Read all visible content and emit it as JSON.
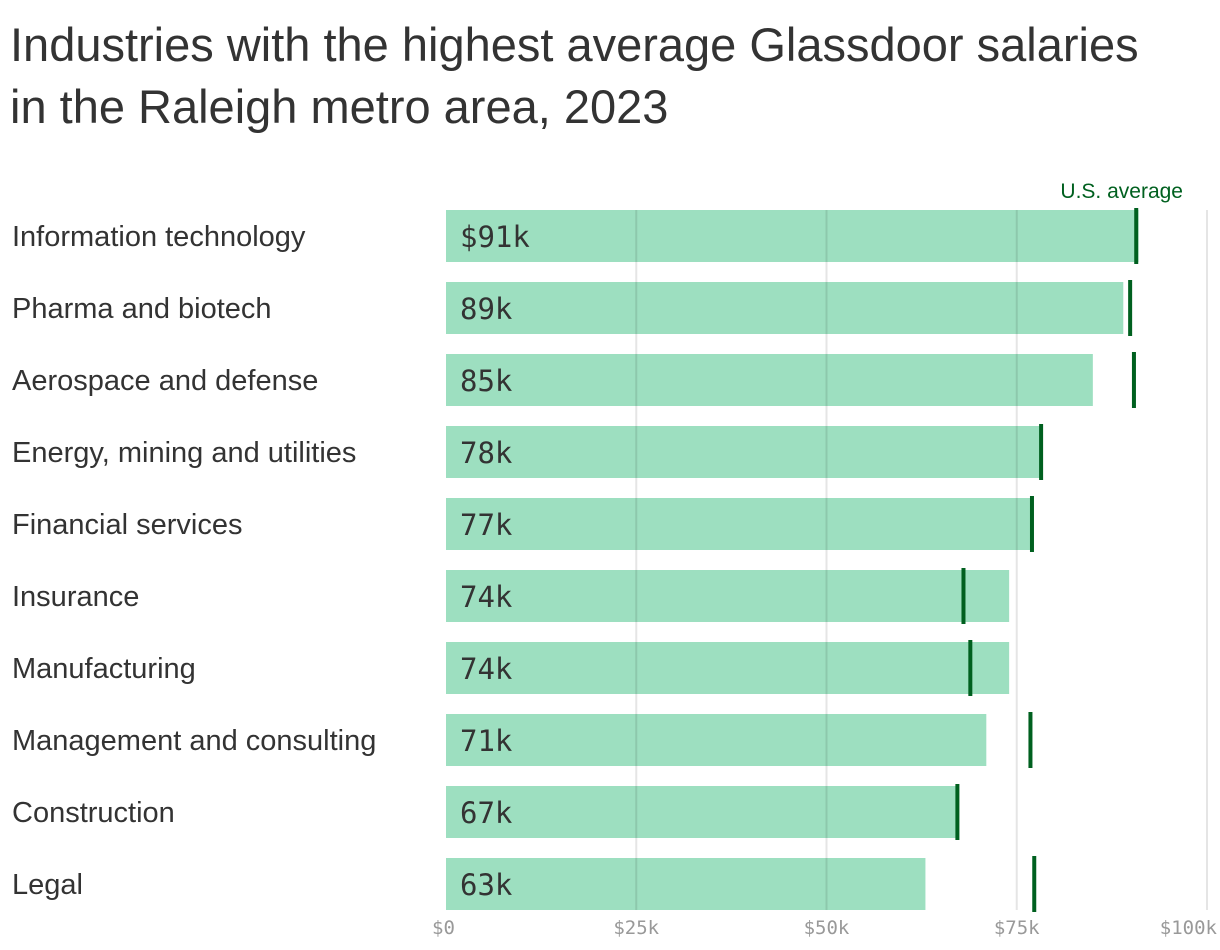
{
  "chart_data": {
    "type": "bar",
    "orientation": "horizontal",
    "title": "Industries with the highest average Glassdoor salaries in the Raleigh metro area, 2023",
    "categories": [
      "Information technology",
      "Pharma and biotech",
      "Aerospace and defense",
      "Energy, mining and utilities",
      "Financial services",
      "Insurance",
      "Manufacturing",
      "Management and consulting",
      "Construction",
      "Legal"
    ],
    "series": [
      {
        "name": "Raleigh",
        "values": [
          91,
          89,
          85,
          78,
          77,
          74,
          74,
          71,
          67,
          63
        ],
        "color": "#9ddfc0"
      },
      {
        "name": "U.S. average",
        "values": [
          90.7,
          89.9,
          90.4,
          78.2,
          77,
          68,
          68.9,
          76.8,
          67.2,
          77.3
        ],
        "color": "#00601f"
      }
    ],
    "data_labels": [
      "$91k",
      "89k",
      "85k",
      "78k",
      "77k",
      "74k",
      "74k",
      "71k",
      "67k",
      "63k"
    ],
    "annotation": "U.S. average",
    "xlim": [
      0,
      100
    ],
    "x_ticks": [
      0,
      25,
      50,
      75,
      100
    ],
    "x_tick_labels": [
      "$0",
      "$25k",
      "$50k",
      "$75k",
      "$100k"
    ],
    "units": "thousands of dollars",
    "grid": "vertical"
  }
}
